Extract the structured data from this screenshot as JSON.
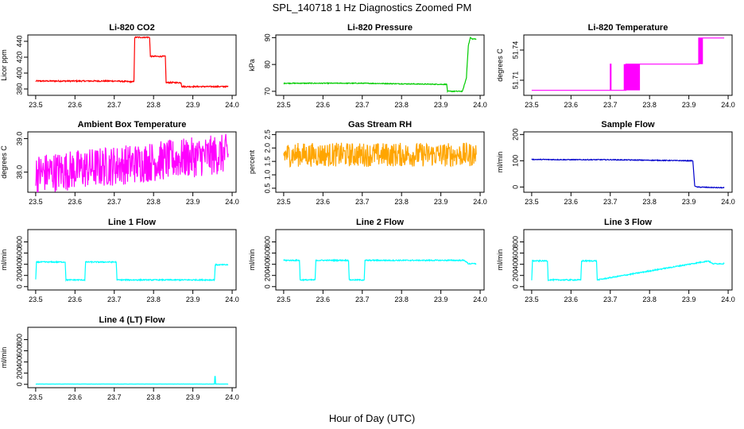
{
  "figure": {
    "title": "SPL_140718  1 Hz Diagnostics Zoomed PM",
    "xlabel": "Hour of Day (UTC)"
  },
  "chart_data": [
    {
      "type": "line",
      "title": "Li-820 CO2",
      "ylabel": "Licor ppm",
      "color": "#ff0000",
      "xlim": [
        23.48,
        24.01
      ],
      "ylim": [
        372,
        448
      ],
      "xticks": [
        23.5,
        23.6,
        23.7,
        23.8,
        23.9,
        24.0
      ],
      "xtick_labels": [
        "23.5",
        "23.6",
        "23.7",
        "23.8",
        "23.9",
        "24.0"
      ],
      "yticks": [
        380,
        400,
        420,
        440
      ],
      "ytick_labels": [
        "380",
        "400",
        "420",
        "440"
      ],
      "x": [
        23.5,
        23.55,
        23.6,
        23.65,
        23.7,
        23.75,
        23.752,
        23.79,
        23.792,
        23.83,
        23.832,
        23.87,
        23.872,
        23.95,
        23.96,
        23.99
      ],
      "y": [
        390,
        390,
        390,
        390,
        390,
        389,
        445,
        445,
        421,
        421,
        388,
        388,
        383,
        383,
        383,
        383
      ],
      "noise": 0.8
    },
    {
      "type": "line",
      "title": "Li-820 Pressure",
      "ylabel": "kPa",
      "color": "#00cc00",
      "xlim": [
        23.48,
        24.01
      ],
      "ylim": [
        68.5,
        91
      ],
      "xticks": [
        23.5,
        23.6,
        23.7,
        23.8,
        23.9,
        24.0
      ],
      "xtick_labels": [
        "23.5",
        "23.6",
        "23.7",
        "23.8",
        "23.9",
        "24.0"
      ],
      "yticks": [
        70,
        80,
        90
      ],
      "ytick_labels": [
        "70",
        "80",
        "90"
      ],
      "x": [
        23.5,
        23.6,
        23.7,
        23.8,
        23.9,
        23.915,
        23.917,
        23.955,
        23.965,
        23.97,
        23.975,
        23.98,
        23.99
      ],
      "y": [
        73,
        73,
        73,
        72.8,
        72.6,
        72.6,
        70,
        70,
        75,
        87,
        90,
        89.5,
        89.5
      ],
      "noise": 0.15
    },
    {
      "type": "line",
      "title": "Li-820 Temperature",
      "ylabel": "degrees C",
      "color": "#ff00ff",
      "xlim": [
        23.48,
        24.01
      ],
      "ylim": [
        51.695,
        51.755
      ],
      "xticks": [
        23.5,
        23.6,
        23.7,
        23.8,
        23.9,
        24.0
      ],
      "xtick_labels": [
        "23.5",
        "23.6",
        "23.7",
        "23.8",
        "23.9",
        "24.0"
      ],
      "yticks": [
        51.71,
        51.74
      ],
      "ytick_labels": [
        "51.71",
        "51.74"
      ],
      "x": [
        23.5,
        23.6,
        23.699,
        23.7,
        23.7,
        23.702,
        23.702,
        23.74,
        23.74,
        23.78,
        23.78,
        23.925,
        23.925,
        23.99
      ],
      "y": [
        51.7,
        51.7,
        51.7,
        51.7,
        51.726,
        51.726,
        51.7,
        51.7,
        51.726,
        51.726,
        51.726,
        51.726,
        51.752,
        51.752
      ],
      "flicker": [
        [
          23.735,
          23.775,
          51.7,
          51.726
        ],
        [
          23.925,
          23.935,
          51.726,
          51.752
        ]
      ]
    },
    {
      "type": "line",
      "title": "Ambient Box Temperature",
      "ylabel": "degrees C",
      "color": "#ff00ff",
      "xlim": [
        23.48,
        24.01
      ],
      "ylim": [
        37.4,
        39.2
      ],
      "xticks": [
        23.5,
        23.6,
        23.7,
        23.8,
        23.9,
        24.0
      ],
      "xtick_labels": [
        "23.5",
        "23.6",
        "23.7",
        "23.8",
        "23.9",
        "24.0"
      ],
      "yticks": [
        38.0,
        39.0
      ],
      "ytick_labels": [
        "38.0",
        "39.0"
      ],
      "x": [
        23.5,
        23.99
      ],
      "y": [
        37.95,
        38.55
      ],
      "noise": 0.6
    },
    {
      "type": "line",
      "title": "Gas Stream RH",
      "ylabel": "percent",
      "color": "#ffa500",
      "xlim": [
        23.48,
        24.01
      ],
      "ylim": [
        0.35,
        2.6
      ],
      "xticks": [
        23.5,
        23.6,
        23.7,
        23.8,
        23.9,
        24.0
      ],
      "xtick_labels": [
        "23.5",
        "23.6",
        "23.7",
        "23.8",
        "23.9",
        "24.0"
      ],
      "yticks": [
        0.5,
        1.0,
        1.5,
        2.0,
        2.5
      ],
      "ytick_labels": [
        "0.5",
        "1.0",
        "1.5",
        "2.0",
        "2.5"
      ],
      "x": [
        23.5,
        23.99
      ],
      "y": [
        1.75,
        1.75
      ],
      "noise": 0.45
    },
    {
      "type": "line",
      "title": "Sample Flow",
      "ylabel": "ml/min",
      "color": "#0000cc",
      "xlim": [
        23.48,
        24.01
      ],
      "ylim": [
        -20,
        210
      ],
      "xticks": [
        23.5,
        23.6,
        23.7,
        23.8,
        23.9,
        24.0
      ],
      "xtick_labels": [
        "23.5",
        "23.6",
        "23.7",
        "23.8",
        "23.9",
        "24.0"
      ],
      "yticks": [
        0,
        100,
        200
      ],
      "ytick_labels": [
        "0",
        "100",
        "200"
      ],
      "x": [
        23.5,
        23.6,
        23.7,
        23.8,
        23.9,
        23.91,
        23.915,
        23.92,
        23.96,
        23.99
      ],
      "y": [
        105,
        104,
        104,
        102,
        100,
        100,
        5,
        0,
        -2,
        -3
      ],
      "noise": 1.5
    },
    {
      "type": "line",
      "title": "Line 1 Flow",
      "ylabel": "ml/min",
      "color": "#00ffff",
      "xlim": [
        23.48,
        24.01
      ],
      "ylim": [
        -60,
        1020
      ],
      "xticks": [
        23.5,
        23.6,
        23.7,
        23.8,
        23.9,
        24.0
      ],
      "xtick_labels": [
        "23.5",
        "23.6",
        "23.7",
        "23.8",
        "23.9",
        "24.0"
      ],
      "yticks": [
        0,
        200,
        400,
        600,
        800
      ],
      "ytick_labels": [
        "0",
        "200",
        "400",
        "600",
        "800"
      ],
      "x": [
        23.5,
        23.502,
        23.575,
        23.577,
        23.625,
        23.627,
        23.705,
        23.707,
        23.955,
        23.957,
        23.99
      ],
      "y": [
        120,
        440,
        440,
        120,
        120,
        440,
        440,
        120,
        120,
        390,
        390
      ],
      "noise": 10
    },
    {
      "type": "line",
      "title": "Line 2 Flow",
      "ylabel": "ml/min",
      "color": "#00ffff",
      "xlim": [
        23.48,
        24.01
      ],
      "ylim": [
        -60,
        1020
      ],
      "xticks": [
        23.5,
        23.6,
        23.7,
        23.8,
        23.9,
        24.0
      ],
      "xtick_labels": [
        "23.5",
        "23.6",
        "23.7",
        "23.8",
        "23.9",
        "24.0"
      ],
      "yticks": [
        0,
        200,
        400,
        600,
        800
      ],
      "ytick_labels": [
        "0",
        "200",
        "400",
        "600",
        "800"
      ],
      "x": [
        23.5,
        23.54,
        23.542,
        23.58,
        23.582,
        23.665,
        23.667,
        23.705,
        23.707,
        23.96,
        23.97,
        23.99
      ],
      "y": [
        470,
        470,
        120,
        120,
        470,
        470,
        120,
        120,
        470,
        470,
        410,
        410
      ],
      "noise": 10
    },
    {
      "type": "line",
      "title": "Line 3 Flow",
      "ylabel": "ml/min",
      "color": "#00ffff",
      "xlim": [
        23.48,
        24.01
      ],
      "ylim": [
        -60,
        1020
      ],
      "xticks": [
        23.5,
        23.6,
        23.7,
        23.8,
        23.9,
        24.0
      ],
      "xtick_labels": [
        "23.5",
        "23.6",
        "23.7",
        "23.8",
        "23.9",
        "24.0"
      ],
      "yticks": [
        0,
        200,
        400,
        600,
        800
      ],
      "ytick_labels": [
        "0",
        "200",
        "400",
        "600",
        "800"
      ],
      "x": [
        23.5,
        23.502,
        23.54,
        23.542,
        23.625,
        23.627,
        23.665,
        23.667,
        23.95,
        23.96,
        23.99
      ],
      "y": [
        120,
        460,
        460,
        120,
        120,
        460,
        460,
        120,
        460,
        410,
        410
      ],
      "extra": [
        [
          23.502,
          23.54,
          460
        ],
        [
          23.667,
          23.95,
          460
        ]
      ],
      "noise": 10
    },
    {
      "type": "line",
      "title": "Line 4 (LT) Flow",
      "ylabel": "ml/min",
      "color": "#00ffff",
      "xlim": [
        23.48,
        24.01
      ],
      "ylim": [
        -60,
        1020
      ],
      "xticks": [
        23.5,
        23.6,
        23.7,
        23.8,
        23.9,
        24.0
      ],
      "xtick_labels": [
        "23.5",
        "23.6",
        "23.7",
        "23.8",
        "23.9",
        "24.0"
      ],
      "yticks": [
        0,
        200,
        400,
        600,
        800
      ],
      "ytick_labels": [
        "0",
        "200",
        "400",
        "600",
        "800"
      ],
      "x": [
        23.5,
        23.955,
        23.956,
        23.957,
        23.958,
        23.99
      ],
      "y": [
        5,
        5,
        140,
        140,
        5,
        5
      ],
      "noise": 1
    }
  ]
}
